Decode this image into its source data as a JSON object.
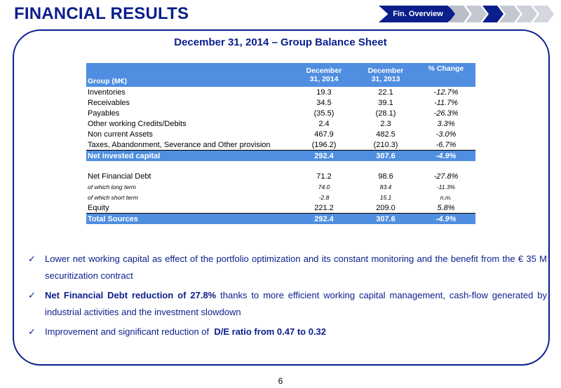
{
  "header": {
    "title": "FINANCIAL RESULTS",
    "nav_active": "Fin. Overview"
  },
  "subtitle": "December 31, 2014 – Group Balance Sheet",
  "table": {
    "col0": "Group (M€)",
    "col1a": "December",
    "col1b": "31, 2014",
    "col2a": "December",
    "col2b": "31, 2013",
    "col3": "% Change",
    "rows": [
      [
        "Inventories",
        "19.3",
        "22.1",
        "-12.7%"
      ],
      [
        "Receivables",
        "34.5",
        "39.1",
        "-11.7%"
      ],
      [
        "Payables",
        "(35.5)",
        "(28.1)",
        "-26.3%"
      ],
      [
        "Other working Credits/Debits",
        "2.4",
        "2.3",
        "3.3%"
      ],
      [
        "Non current Assets",
        "467.9",
        "482.5",
        "-3.0%"
      ],
      [
        "Taxes, Abandonment, Severance and Other provision",
        "(196.2)",
        "(210.3)",
        "-6.7%"
      ],
      [
        "Net invested capital",
        "292.4",
        "307.6",
        "-4.9%"
      ],
      [
        "Net Financial Debt",
        "71.2",
        "98.6",
        "-27.8%"
      ],
      [
        "of which long term",
        "74.0",
        "83.4",
        "-11.3%"
      ],
      [
        "of which short term",
        "-2.8",
        "15.1",
        "n.m."
      ],
      [
        "Equity",
        "221.2",
        "209.0",
        "5.8%"
      ],
      [
        "Total Sources",
        "292.4",
        "307.6",
        "-4.9%"
      ]
    ]
  },
  "bullets": {
    "b1": "Lower net working capital as effect of the portfolio optimization and its constant monitoring and the benefit from the € 35 M securitization contract",
    "b2_bold": "Net Financial Debt reduction of 27.8%",
    "b2_rest": " thanks to more efficient working capital management, cash-flow generated by industrial activities and the investment slowdown",
    "b3_pre": "Improvement and significant reduction of  ",
    "b3_bold": "D/E ratio from 0.47 to 0.32"
  },
  "page_number": "6",
  "colors": {
    "brand": "#0a1e8c",
    "table_header": "#4f8ee0"
  }
}
